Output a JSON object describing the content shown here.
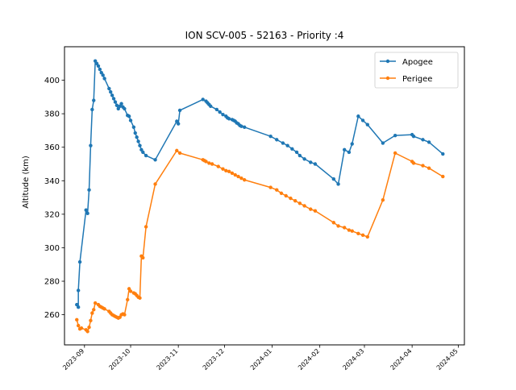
{
  "chart_data": {
    "type": "line",
    "title": "ION SCV-005 - 52163 - Priority :4",
    "xlabel": "",
    "ylabel": "Altitude (km)",
    "xlim": [
      "2023-08-19",
      "2024-05-05"
    ],
    "ylim": [
      242,
      420
    ],
    "grid": false,
    "legend_position": "top-right",
    "x_ticks": [
      "2023-09",
      "2023-10",
      "2023-11",
      "2023-12",
      "2024-01",
      "2024-02",
      "2024-03",
      "2024-04",
      "2024-05"
    ],
    "y_ticks": [
      260,
      280,
      300,
      320,
      340,
      360,
      380,
      400
    ],
    "series": [
      {
        "name": "Apogee",
        "color": "#1f77b4",
        "points": [
          [
            "2023-08-27",
            266
          ],
          [
            "2023-08-28",
            264.5
          ],
          [
            "2023-08-28",
            274.5
          ],
          [
            "2023-08-29",
            291.5
          ],
          [
            "2023-09-02",
            322.5
          ],
          [
            "2023-09-03",
            320.5
          ],
          [
            "2023-09-04",
            334.5
          ],
          [
            "2023-09-05",
            361
          ],
          [
            "2023-09-06",
            382.5
          ],
          [
            "2023-09-07",
            388
          ],
          [
            "2023-09-08",
            411.5
          ],
          [
            "2023-09-09",
            410
          ],
          [
            "2023-09-10",
            408.5
          ],
          [
            "2023-09-11",
            406.5
          ],
          [
            "2023-09-12",
            404.5
          ],
          [
            "2023-09-13",
            403
          ],
          [
            "2023-09-14",
            401
          ],
          [
            "2023-09-17",
            395
          ],
          [
            "2023-09-18",
            393
          ],
          [
            "2023-09-19",
            391
          ],
          [
            "2023-09-20",
            389
          ],
          [
            "2023-09-21",
            387
          ],
          [
            "2023-09-22",
            385
          ],
          [
            "2023-09-23",
            383
          ],
          [
            "2023-09-24",
            384.5
          ],
          [
            "2023-09-25",
            386
          ],
          [
            "2023-09-26",
            384
          ],
          [
            "2023-09-27",
            383
          ],
          [
            "2023-09-29",
            379
          ],
          [
            "2023-09-30",
            378.5
          ],
          [
            "2023-10-01",
            376
          ],
          [
            "2023-10-03",
            372
          ],
          [
            "2023-10-04",
            368.5
          ],
          [
            "2023-10-05",
            366
          ],
          [
            "2023-10-06",
            363.5
          ],
          [
            "2023-10-07",
            361
          ],
          [
            "2023-10-08",
            358.5
          ],
          [
            "2023-10-09",
            357
          ],
          [
            "2023-10-11",
            355
          ],
          [
            "2023-10-17",
            352.5
          ],
          [
            "2023-10-31",
            375.5
          ],
          [
            "2023-11-01",
            374
          ],
          [
            "2023-11-02",
            382
          ],
          [
            "2023-11-17",
            388.5
          ],
          [
            "2023-11-19",
            387.5
          ],
          [
            "2023-11-20",
            386.5
          ],
          [
            "2023-11-21",
            385.5
          ],
          [
            "2023-11-22",
            384.5
          ],
          [
            "2023-11-26",
            382.5
          ],
          [
            "2023-11-28",
            381
          ],
          [
            "2023-11-30",
            379.5
          ],
          [
            "2023-12-02",
            378.5
          ],
          [
            "2023-12-03",
            377.5
          ],
          [
            "2023-12-04",
            377
          ],
          [
            "2023-12-06",
            376.5
          ],
          [
            "2023-12-07",
            376
          ],
          [
            "2023-12-08",
            375.5
          ],
          [
            "2023-12-09",
            374.5
          ],
          [
            "2023-12-10",
            374
          ],
          [
            "2023-12-11",
            373
          ],
          [
            "2023-12-12",
            372.5
          ],
          [
            "2023-12-14",
            372
          ],
          [
            "2023-12-31",
            366.5
          ],
          [
            "2024-01-04",
            364.5
          ],
          [
            "2024-01-08",
            362.5
          ],
          [
            "2024-01-11",
            361
          ],
          [
            "2024-01-14",
            359
          ],
          [
            "2024-01-17",
            357
          ],
          [
            "2024-01-19",
            355
          ],
          [
            "2024-01-22",
            353
          ],
          [
            "2024-01-26",
            351
          ],
          [
            "2024-01-29",
            350
          ],
          [
            "2024-02-10",
            341
          ],
          [
            "2024-02-13",
            338
          ],
          [
            "2024-02-17",
            358.5
          ],
          [
            "2024-02-20",
            357
          ],
          [
            "2024-02-22",
            362
          ],
          [
            "2024-02-26",
            378.5
          ],
          [
            "2024-02-29",
            376
          ],
          [
            "2024-03-03",
            373.5
          ],
          [
            "2024-03-13",
            362.5
          ],
          [
            "2024-03-21",
            367
          ],
          [
            "2024-04-01",
            367.5
          ],
          [
            "2024-04-02",
            366.5
          ],
          [
            "2024-04-08",
            364.5
          ],
          [
            "2024-04-12",
            363
          ],
          [
            "2024-04-21",
            356
          ]
        ]
      },
      {
        "name": "Perigee",
        "color": "#ff7f0e",
        "points": [
          [
            "2023-08-27",
            257
          ],
          [
            "2023-08-28",
            253.5
          ],
          [
            "2023-08-29",
            251.5
          ],
          [
            "2023-08-30",
            252
          ],
          [
            "2023-09-02",
            251
          ],
          [
            "2023-09-03",
            250
          ],
          [
            "2023-09-04",
            252.5
          ],
          [
            "2023-09-05",
            256.5
          ],
          [
            "2023-09-06",
            261
          ],
          [
            "2023-09-07",
            263
          ],
          [
            "2023-09-08",
            267
          ],
          [
            "2023-09-10",
            266
          ],
          [
            "2023-09-11",
            265
          ],
          [
            "2023-09-12",
            264.5
          ],
          [
            "2023-09-13",
            264
          ],
          [
            "2023-09-14",
            263.5
          ],
          [
            "2023-09-17",
            262
          ],
          [
            "2023-09-18",
            261
          ],
          [
            "2023-09-19",
            260
          ],
          [
            "2023-09-20",
            259.5
          ],
          [
            "2023-09-21",
            259
          ],
          [
            "2023-09-22",
            258.5
          ],
          [
            "2023-09-23",
            258
          ],
          [
            "2023-09-24",
            258.5
          ],
          [
            "2023-09-25",
            260
          ],
          [
            "2023-09-26",
            260.5
          ],
          [
            "2023-09-27",
            260
          ],
          [
            "2023-09-29",
            269
          ],
          [
            "2023-09-30",
            275.5
          ],
          [
            "2023-10-01",
            274
          ],
          [
            "2023-10-03",
            273
          ],
          [
            "2023-10-04",
            272.5
          ],
          [
            "2023-10-05",
            271.5
          ],
          [
            "2023-10-06",
            270.5
          ],
          [
            "2023-10-07",
            270
          ],
          [
            "2023-10-08",
            295
          ],
          [
            "2023-10-09",
            294
          ],
          [
            "2023-10-11",
            312.5
          ],
          [
            "2023-10-17",
            338
          ],
          [
            "2023-10-31",
            358
          ],
          [
            "2023-11-02",
            356.5
          ],
          [
            "2023-11-17",
            352.5
          ],
          [
            "2023-11-18",
            352
          ],
          [
            "2023-11-19",
            351.5
          ],
          [
            "2023-11-21",
            350.5
          ],
          [
            "2023-11-23",
            350
          ],
          [
            "2023-11-27",
            348.5
          ],
          [
            "2023-11-30",
            347
          ],
          [
            "2023-12-02",
            346
          ],
          [
            "2023-12-04",
            345.5
          ],
          [
            "2023-12-06",
            344.5
          ],
          [
            "2023-12-08",
            343.5
          ],
          [
            "2023-12-10",
            342.5
          ],
          [
            "2023-12-12",
            341.5
          ],
          [
            "2023-12-14",
            340.5
          ],
          [
            "2023-12-31",
            336
          ],
          [
            "2024-01-04",
            334.5
          ],
          [
            "2024-01-07",
            332.5
          ],
          [
            "2024-01-10",
            331
          ],
          [
            "2024-01-13",
            329.5
          ],
          [
            "2024-01-16",
            328
          ],
          [
            "2024-01-19",
            326.5
          ],
          [
            "2024-01-22",
            325
          ],
          [
            "2024-01-26",
            323
          ],
          [
            "2024-01-29",
            322
          ],
          [
            "2024-02-10",
            315
          ],
          [
            "2024-02-13",
            313
          ],
          [
            "2024-02-17",
            312
          ],
          [
            "2024-02-20",
            310.5
          ],
          [
            "2024-02-22",
            310
          ],
          [
            "2024-02-26",
            308.5
          ],
          [
            "2024-02-29",
            307.5
          ],
          [
            "2024-03-03",
            306.5
          ],
          [
            "2024-03-13",
            328.5
          ],
          [
            "2024-03-21",
            356.5
          ],
          [
            "2024-04-01",
            351.5
          ],
          [
            "2024-04-02",
            350.5
          ],
          [
            "2024-04-08",
            349
          ],
          [
            "2024-04-12",
            347.5
          ],
          [
            "2024-04-21",
            342.5
          ]
        ]
      }
    ]
  }
}
